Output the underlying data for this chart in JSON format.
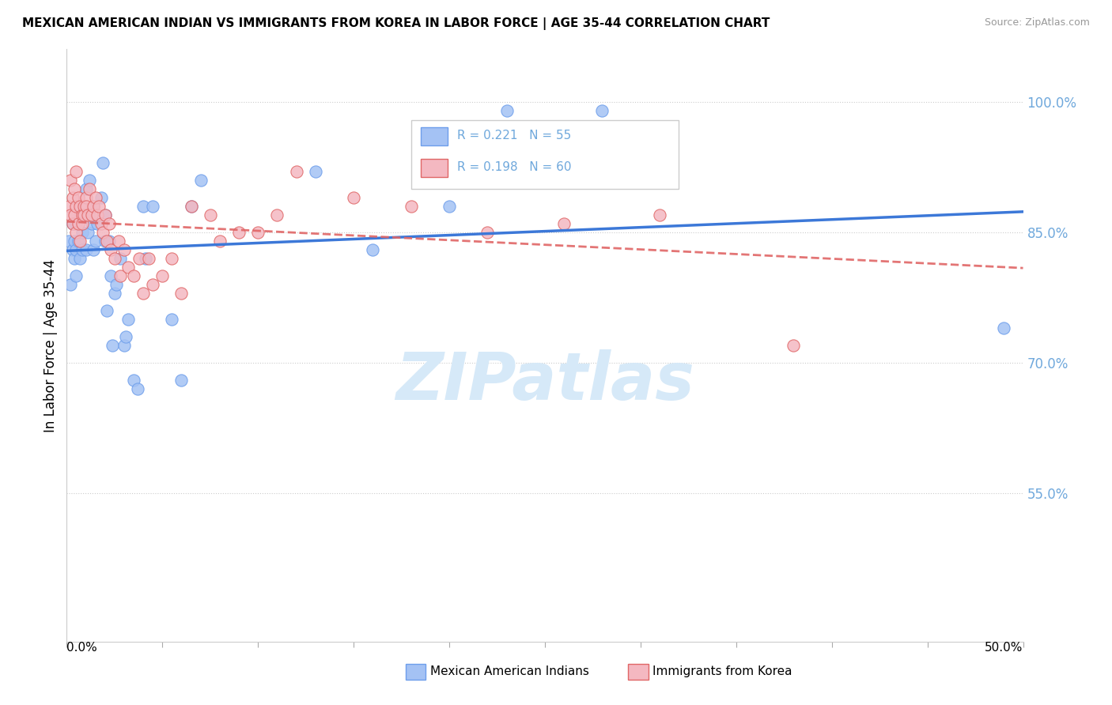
{
  "title": "MEXICAN AMERICAN INDIAN VS IMMIGRANTS FROM KOREA IN LABOR FORCE | AGE 35-44 CORRELATION CHART",
  "source": "Source: ZipAtlas.com",
  "ylabel": "In Labor Force | Age 35-44",
  "legend_label_blue": "Mexican American Indians",
  "legend_label_pink": "Immigrants from Korea",
  "R_blue": 0.221,
  "N_blue": 55,
  "R_pink": 0.198,
  "N_pink": 60,
  "color_blue_fill": "#a4c2f4",
  "color_blue_edge": "#6d9eeb",
  "color_pink_fill": "#f4b8c1",
  "color_pink_edge": "#e06666",
  "color_blue_line": "#3c78d8",
  "color_pink_line": "#cc0000",
  "color_ytick": "#6fa8dc",
  "watermark_color": "#d6e9f8",
  "xlim": [
    0.0,
    0.5
  ],
  "ylim": [
    0.38,
    1.06
  ],
  "yticks": [
    0.55,
    0.7,
    0.85,
    1.0
  ],
  "ytick_labels": [
    "55.0%",
    "70.0%",
    "85.0%",
    "100.0%"
  ],
  "blue_x": [
    0.001,
    0.002,
    0.003,
    0.003,
    0.004,
    0.004,
    0.005,
    0.005,
    0.005,
    0.006,
    0.007,
    0.007,
    0.008,
    0.008,
    0.009,
    0.009,
    0.01,
    0.01,
    0.011,
    0.012,
    0.012,
    0.013,
    0.014,
    0.014,
    0.015,
    0.016,
    0.018,
    0.019,
    0.02,
    0.02,
    0.021,
    0.022,
    0.023,
    0.024,
    0.025,
    0.026,
    0.028,
    0.03,
    0.031,
    0.032,
    0.035,
    0.037,
    0.04,
    0.041,
    0.045,
    0.055,
    0.06,
    0.065,
    0.07,
    0.13,
    0.16,
    0.2,
    0.23,
    0.28,
    0.49
  ],
  "blue_y": [
    0.84,
    0.79,
    0.83,
    0.86,
    0.82,
    0.84,
    0.8,
    0.83,
    0.86,
    0.84,
    0.82,
    0.87,
    0.83,
    0.85,
    0.87,
    0.88,
    0.83,
    0.9,
    0.85,
    0.91,
    0.87,
    0.86,
    0.88,
    0.83,
    0.84,
    0.86,
    0.89,
    0.93,
    0.84,
    0.87,
    0.76,
    0.84,
    0.8,
    0.72,
    0.78,
    0.79,
    0.82,
    0.72,
    0.73,
    0.75,
    0.68,
    0.67,
    0.88,
    0.82,
    0.88,
    0.75,
    0.68,
    0.88,
    0.91,
    0.92,
    0.83,
    0.88,
    0.99,
    0.99,
    0.74
  ],
  "pink_x": [
    0.001,
    0.002,
    0.002,
    0.003,
    0.003,
    0.004,
    0.004,
    0.005,
    0.005,
    0.005,
    0.006,
    0.006,
    0.007,
    0.007,
    0.008,
    0.008,
    0.009,
    0.009,
    0.01,
    0.01,
    0.011,
    0.012,
    0.013,
    0.014,
    0.015,
    0.016,
    0.017,
    0.018,
    0.019,
    0.02,
    0.021,
    0.022,
    0.023,
    0.025,
    0.027,
    0.028,
    0.03,
    0.032,
    0.035,
    0.038,
    0.04,
    0.043,
    0.045,
    0.05,
    0.055,
    0.06,
    0.065,
    0.075,
    0.08,
    0.09,
    0.1,
    0.11,
    0.12,
    0.15,
    0.18,
    0.2,
    0.22,
    0.26,
    0.31,
    0.38
  ],
  "pink_y": [
    0.88,
    0.87,
    0.91,
    0.86,
    0.89,
    0.87,
    0.9,
    0.85,
    0.88,
    0.92,
    0.86,
    0.89,
    0.84,
    0.88,
    0.87,
    0.86,
    0.88,
    0.87,
    0.89,
    0.88,
    0.87,
    0.9,
    0.87,
    0.88,
    0.89,
    0.87,
    0.88,
    0.86,
    0.85,
    0.87,
    0.84,
    0.86,
    0.83,
    0.82,
    0.84,
    0.8,
    0.83,
    0.81,
    0.8,
    0.82,
    0.78,
    0.82,
    0.79,
    0.8,
    0.82,
    0.78,
    0.88,
    0.87,
    0.84,
    0.85,
    0.85,
    0.87,
    0.92,
    0.89,
    0.88,
    0.92,
    0.85,
    0.86,
    0.87,
    0.72
  ]
}
